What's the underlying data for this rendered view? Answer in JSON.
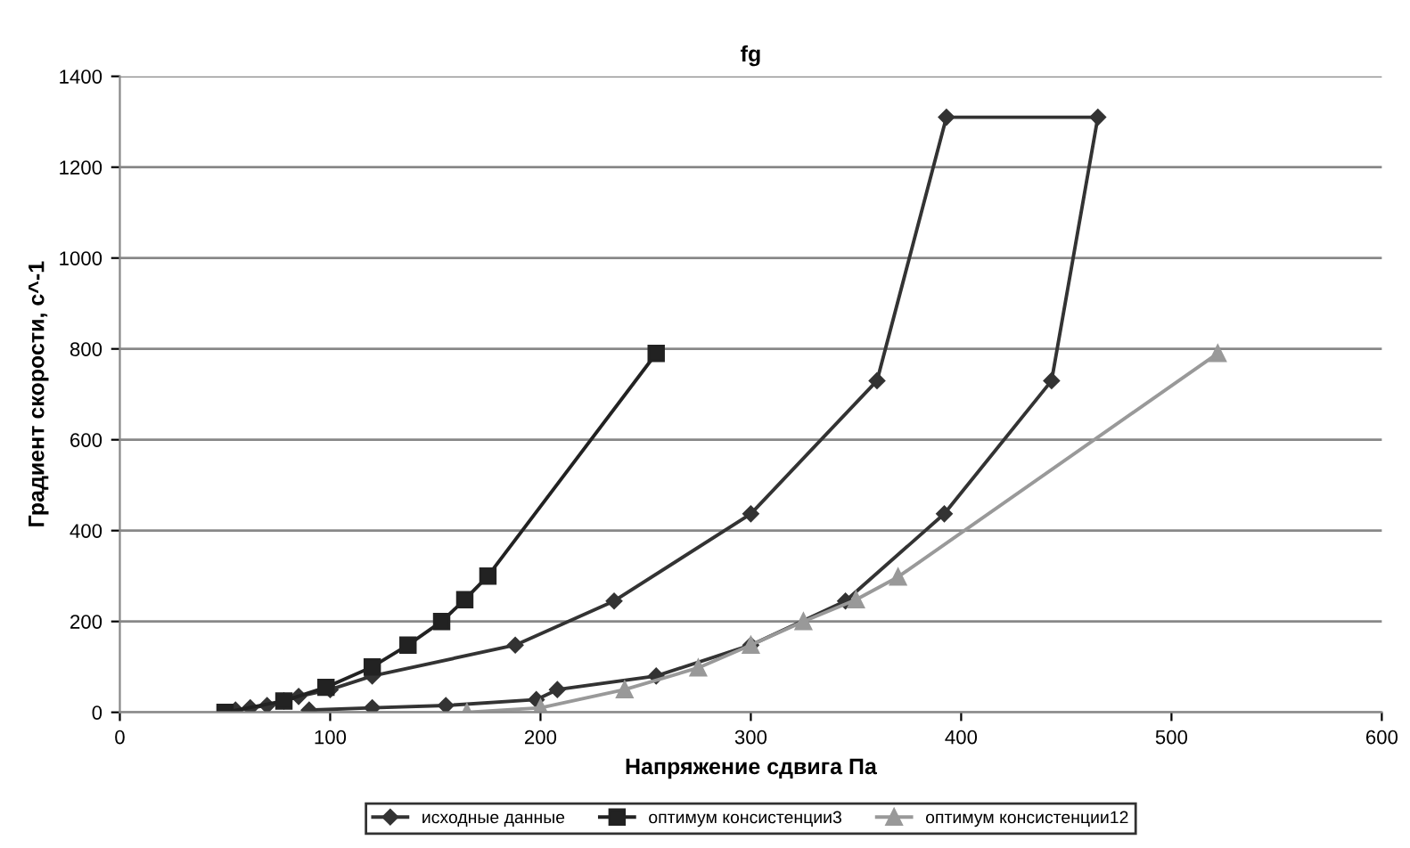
{
  "chart_data": {
    "type": "line",
    "title": "fg",
    "xlabel": "Напряжение сдвига Па",
    "ylabel": "Градиент скорости, с^-1",
    "xlim": [
      0,
      600
    ],
    "xticks": [
      0,
      100,
      200,
      300,
      400,
      500,
      600
    ],
    "ylim": [
      0,
      1400
    ],
    "yticks": [
      0,
      200,
      400,
      600,
      800,
      1000,
      1200,
      1400
    ],
    "grid": "y",
    "legend": "bottom",
    "series": [
      {
        "name": "исходные данные",
        "color": "#333333",
        "marker": "diamond",
        "x": [
          55,
          62,
          70,
          78,
          85,
          100,
          120,
          188,
          235,
          300,
          360,
          393,
          465,
          443,
          392,
          345,
          300,
          255,
          208,
          198,
          155,
          120,
          90
        ],
        "values": [
          5,
          10,
          15,
          25,
          35,
          50,
          80,
          148,
          245,
          437,
          730,
          1310,
          1310,
          730,
          437,
          245,
          148,
          80,
          50,
          28,
          15,
          10,
          5
        ]
      },
      {
        "name": "оптимум консистенции3",
        "color": "#222222",
        "marker": "square",
        "x": [
          50,
          78,
          98,
          120,
          137,
          153,
          164,
          175,
          255
        ],
        "values": [
          0,
          25,
          55,
          100,
          148,
          200,
          248,
          300,
          790
        ]
      },
      {
        "name": "оптимум консистенции12",
        "color": "#999999",
        "marker": "triangle",
        "x": [
          165,
          200,
          240,
          275,
          300,
          325,
          350,
          370,
          522
        ],
        "values": [
          0,
          10,
          50,
          98,
          148,
          200,
          248,
          298,
          790
        ]
      }
    ]
  }
}
